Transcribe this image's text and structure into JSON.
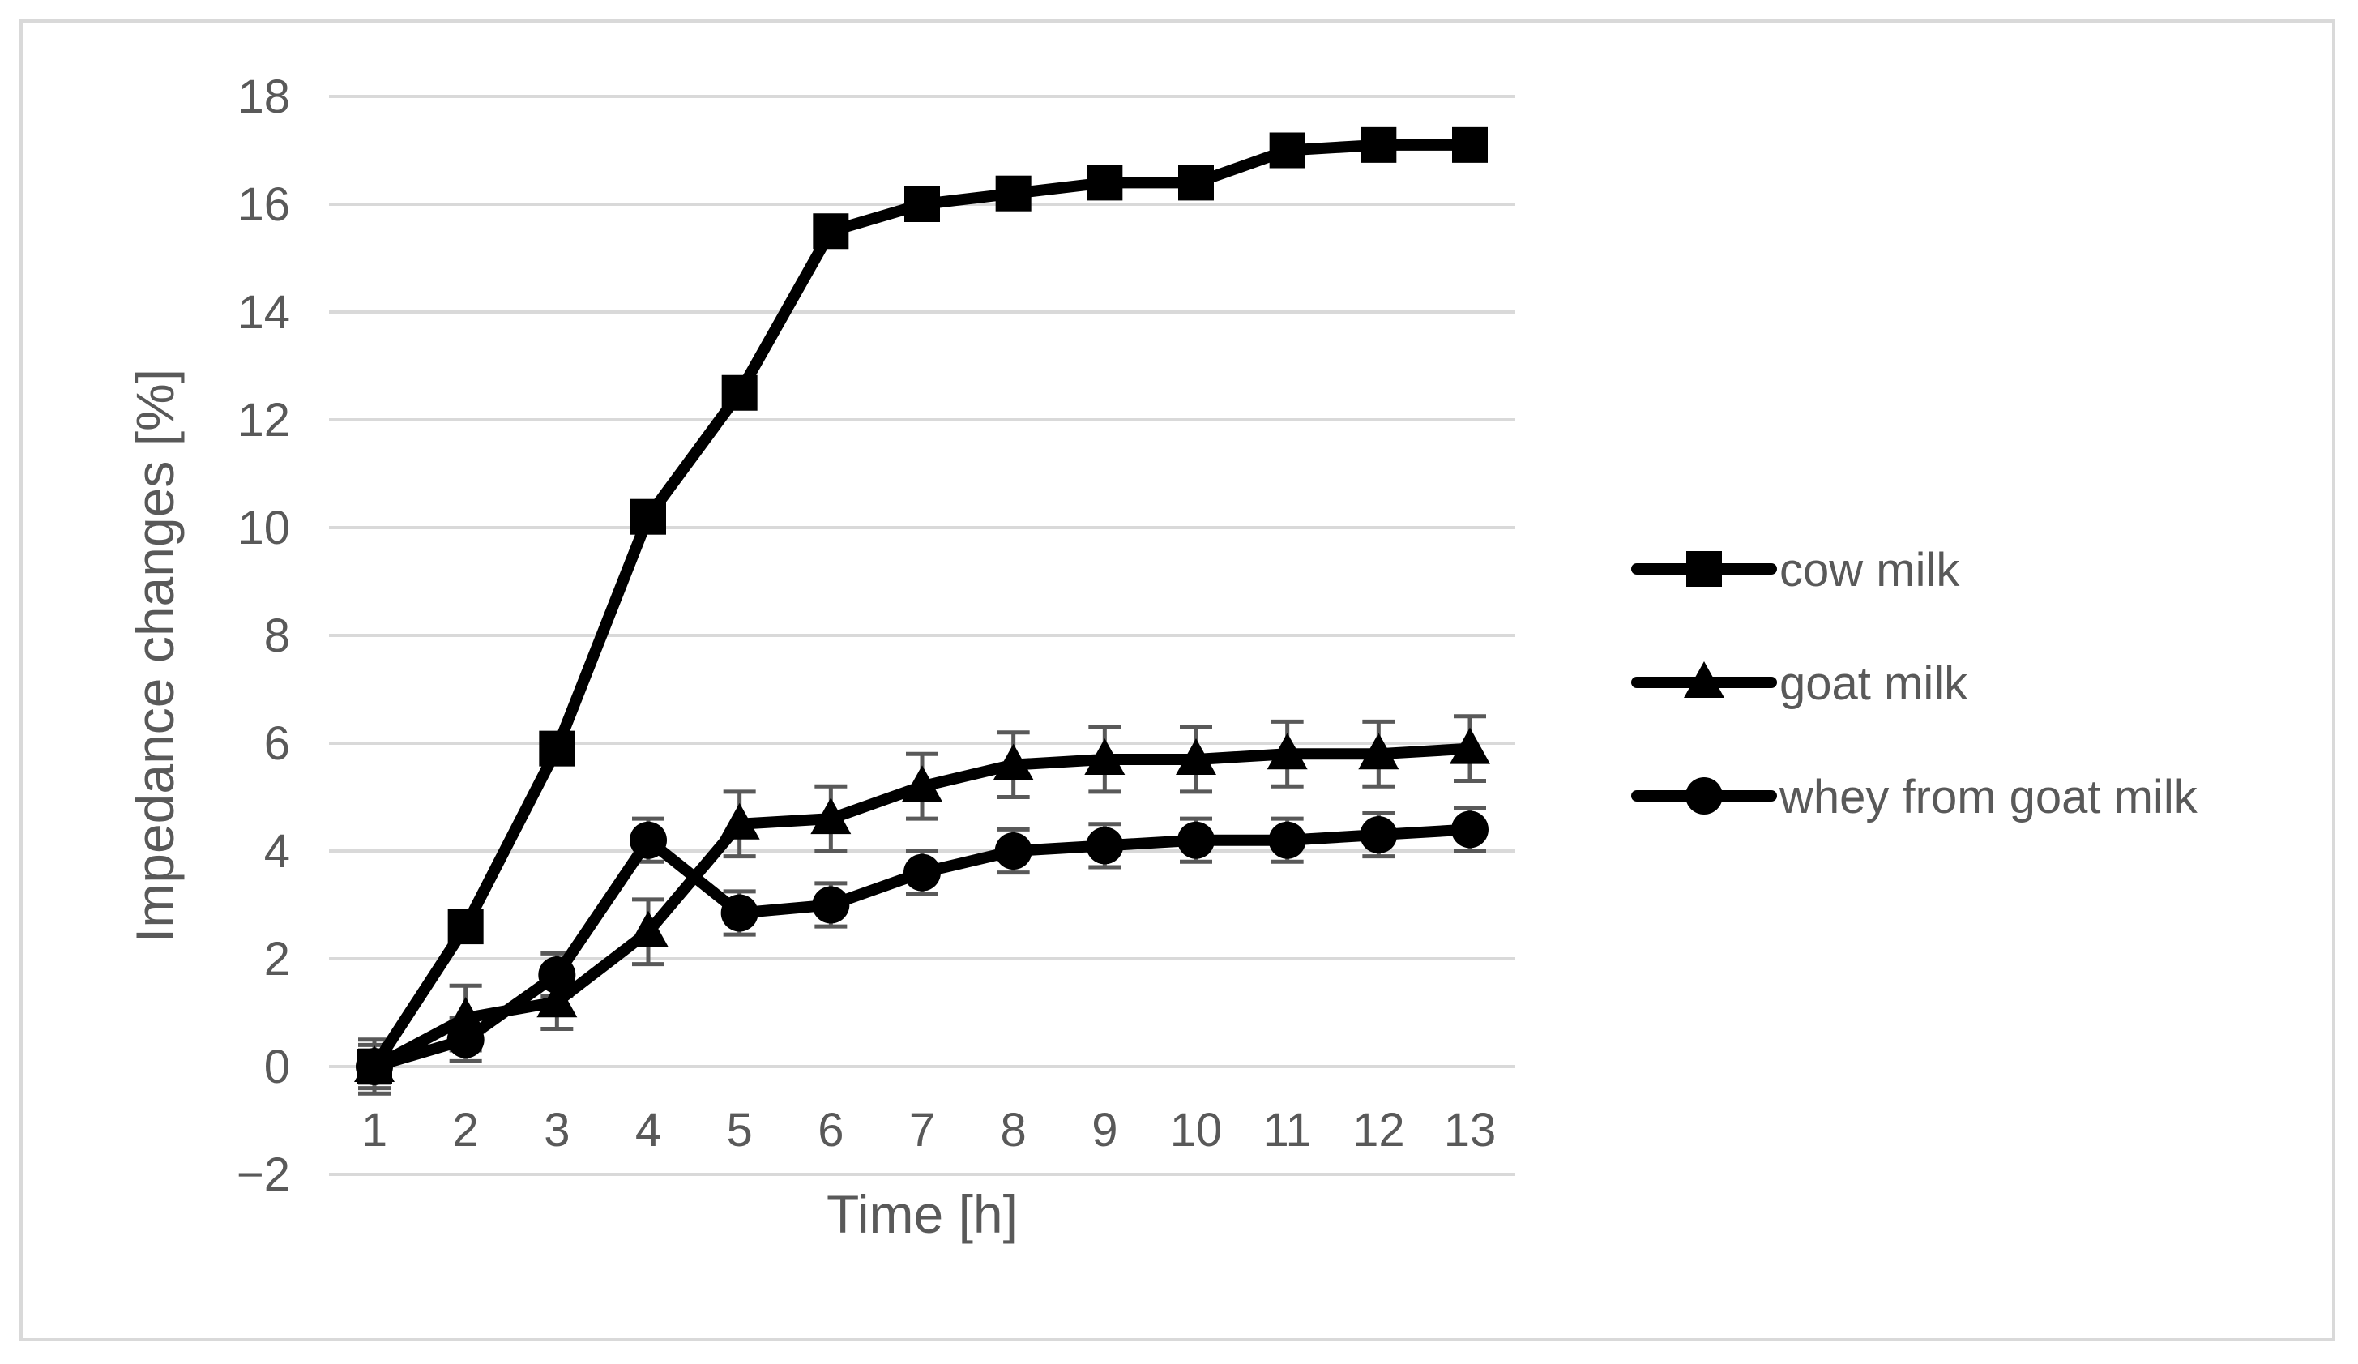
{
  "chart_data": {
    "type": "line",
    "xlabel": "Time [h]",
    "ylabel": "Impedance changes [%]",
    "categories": [
      "1",
      "2",
      "3",
      "4",
      "5",
      "6",
      "7",
      "8",
      "9",
      "10",
      "11",
      "12",
      "13"
    ],
    "ylim": [
      -2,
      18
    ],
    "yticks": [
      "−2",
      "0",
      "2",
      "4",
      "6",
      "8",
      "10",
      "12",
      "14",
      "16",
      "18"
    ],
    "ytick_values": [
      -2,
      0,
      2,
      4,
      6,
      8,
      10,
      12,
      14,
      16,
      18
    ],
    "grid": "horizontal",
    "legend_position": "right",
    "series": [
      {
        "name": "cow milk",
        "marker": "square",
        "values": [
          0,
          2.6,
          5.9,
          10.2,
          12.5,
          15.5,
          16.0,
          16.2,
          16.4,
          16.4,
          17.0,
          17.1,
          17.1
        ],
        "errors": [
          0.3,
          0,
          0,
          0,
          0,
          0,
          0,
          0,
          0,
          0,
          0,
          0,
          0
        ]
      },
      {
        "name": "goat milk",
        "marker": "triangle",
        "values": [
          0,
          0.9,
          1.2,
          2.5,
          4.5,
          4.6,
          5.2,
          5.6,
          5.7,
          5.7,
          5.8,
          5.8,
          5.9
        ],
        "errors": [
          0.5,
          0.6,
          0.5,
          0.6,
          0.6,
          0.6,
          0.6,
          0.6,
          0.6,
          0.6,
          0.6,
          0.6,
          0.6
        ]
      },
      {
        "name": "whey from goat milk",
        "marker": "circle",
        "values": [
          0,
          0.5,
          1.7,
          4.2,
          2.85,
          3.0,
          3.6,
          4.0,
          4.1,
          4.2,
          4.2,
          4.3,
          4.4
        ],
        "errors": [
          0.4,
          0.4,
          0.4,
          0.4,
          0.4,
          0.4,
          0.4,
          0.4,
          0.4,
          0.4,
          0.4,
          0.4,
          0.4
        ]
      }
    ],
    "colors": {
      "series": "#000000",
      "grid": "#d9d9d9",
      "error_bars": "#595959",
      "text": "#595959",
      "border": "#d9d9d9"
    }
  }
}
